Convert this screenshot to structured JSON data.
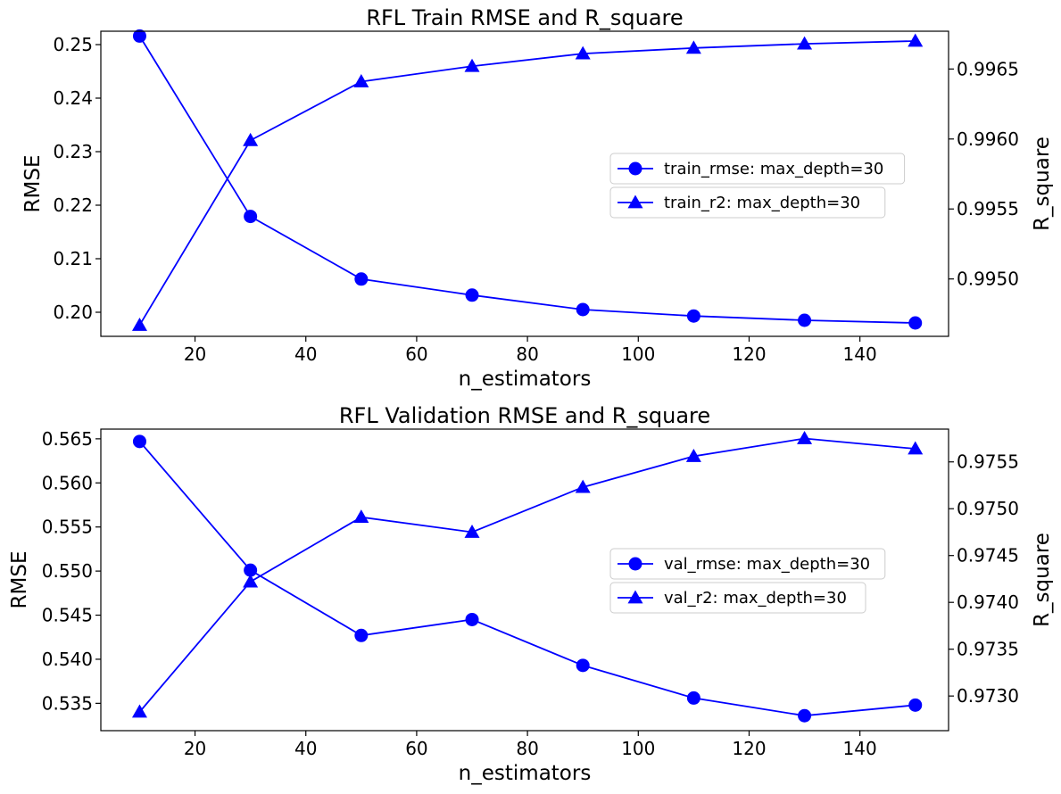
{
  "chart_data": [
    {
      "type": "line",
      "title": "RFL Train RMSE and R_square",
      "xlabel": "n_estimators",
      "ylabel": "RMSE",
      "y2label": "R_square",
      "x": [
        10,
        30,
        50,
        70,
        90,
        110,
        130,
        150
      ],
      "xlim": [
        3,
        156
      ],
      "xticks": [
        20,
        40,
        60,
        80,
        100,
        120,
        140
      ],
      "ylim": [
        0.1955,
        0.2525
      ],
      "yticks": [
        "0.20",
        "0.21",
        "0.22",
        "0.23",
        "0.24",
        "0.25"
      ],
      "y2lim": [
        0.99459,
        0.99677
      ],
      "y2ticks": [
        "0.9950",
        "0.9955",
        "0.9960",
        "0.9965"
      ],
      "grid": false,
      "legend_position": "center-right",
      "color": "#0000ff",
      "series": [
        {
          "name": "train_rmse: max_depth=30",
          "axis": "left",
          "marker": "circle",
          "values": [
            0.2516,
            0.2179,
            0.2062,
            0.2032,
            0.2005,
            0.1993,
            0.1985,
            0.198
          ]
        },
        {
          "name": "train_r2: max_depth=30",
          "axis": "right",
          "marker": "triangle",
          "values": [
            0.99467,
            0.99599,
            0.99641,
            0.99652,
            0.99661,
            0.99665,
            0.99668,
            0.9967
          ]
        }
      ]
    },
    {
      "type": "line",
      "title": "RFL Validation RMSE and R_square",
      "xlabel": "n_estimators",
      "ylabel": "RMSE",
      "y2label": "R_square",
      "x": [
        10,
        30,
        50,
        70,
        90,
        110,
        130,
        150
      ],
      "xlim": [
        3,
        156
      ],
      "xticks": [
        20,
        40,
        60,
        80,
        100,
        120,
        140
      ],
      "ylim": [
        0.5319,
        0.5661
      ],
      "yticks": [
        "0.535",
        "0.540",
        "0.545",
        "0.550",
        "0.555",
        "0.560",
        "0.565"
      ],
      "y2lim": [
        0.97263,
        0.97585
      ],
      "y2ticks": [
        "0.9730",
        "0.9735",
        "0.9740",
        "0.9745",
        "0.9750",
        "0.9755"
      ],
      "grid": false,
      "legend_position": "center-right",
      "color": "#0000ff",
      "series": [
        {
          "name": "val_rmse: max_depth=30",
          "axis": "left",
          "marker": "circle",
          "values": [
            0.5647,
            0.5501,
            0.5427,
            0.5445,
            0.5393,
            0.5356,
            0.5336,
            0.5348
          ]
        },
        {
          "name": "val_r2: max_depth=30",
          "axis": "right",
          "marker": "triangle",
          "values": [
            0.97283,
            0.97422,
            0.97491,
            0.97475,
            0.97523,
            0.97556,
            0.97575,
            0.97564
          ]
        }
      ]
    }
  ]
}
